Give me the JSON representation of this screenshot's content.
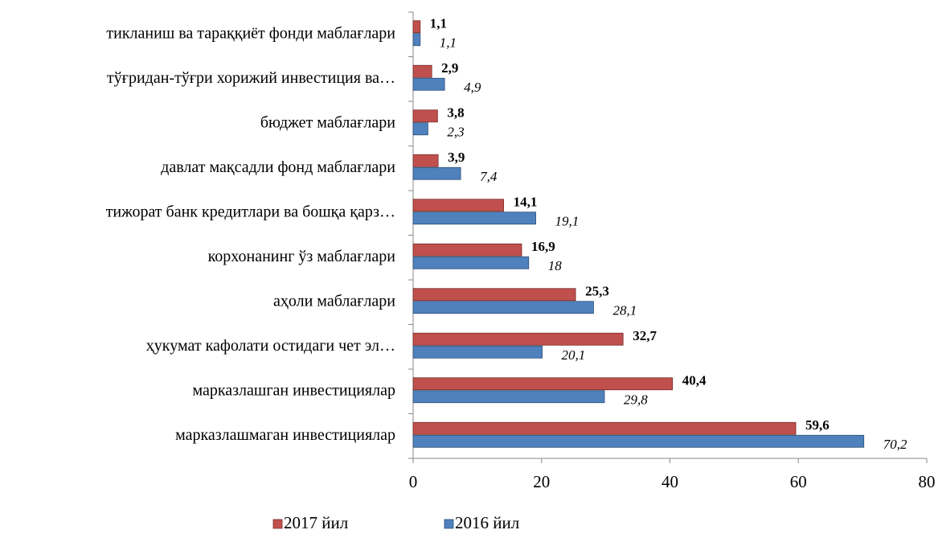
{
  "chart_data": {
    "type": "hbar",
    "categories": [
      "тикланиш ва тараққиёт фонди маблағлари",
      "тўғридан-тўғри хорижий инвестиция ва…",
      "бюджет маблағлари",
      "давлат мақсадли фонд маблағлари",
      "тижорат банк кредитлари ва бошқа қарз…",
      "корхонанинг ўз маблағлари",
      "аҳоли маблағлари",
      "ҳукумат кафолати остидаги чет эл…",
      "марказлашган инвестициялар",
      "марказлашмаган инвестициялар"
    ],
    "series": [
      {
        "name": "2017 йил",
        "color": "#c0504d",
        "values": [
          1.1,
          2.9,
          3.8,
          3.9,
          14.1,
          16.9,
          25.3,
          32.7,
          40.4,
          59.6
        ],
        "value_labels": [
          "1,1",
          "2,9",
          "3,8",
          "3,9",
          "14,1",
          "16,9",
          "25,3",
          "32,7",
          "40,4",
          "59,6"
        ]
      },
      {
        "name": "2016 йил",
        "color": "#4f81bd",
        "values": [
          1.1,
          4.9,
          2.3,
          7.4,
          19.1,
          18,
          28.1,
          20.1,
          29.8,
          70.2
        ],
        "value_labels": [
          "1,1",
          "4,9",
          "2,3",
          "7,4",
          "19,1",
          "18",
          "28,1",
          "20,1",
          "29,8",
          "70,2"
        ]
      }
    ],
    "xlim": [
      0,
      80
    ],
    "xticks": [
      0,
      20,
      40,
      60,
      80
    ],
    "legend": "bottom"
  }
}
